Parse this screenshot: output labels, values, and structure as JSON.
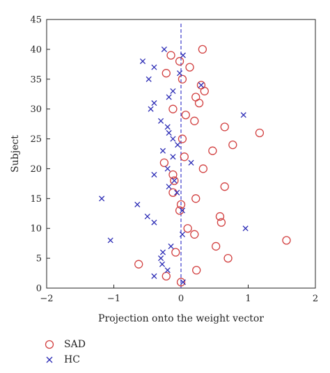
{
  "chart_data": {
    "type": "scatter",
    "xlabel": "Projection onto the weight vector",
    "ylabel": "Subject",
    "xlim": [
      -2,
      2
    ],
    "ylim": [
      0,
      45
    ],
    "xticks": [
      -2,
      -1,
      0,
      1,
      2
    ],
    "yticks": [
      0,
      5,
      10,
      15,
      20,
      25,
      30,
      35,
      40,
      45
    ],
    "grid": false,
    "legend_position": "below-left",
    "reference_line": {
      "x": 0,
      "style": "dashed",
      "color": "#3b3bcc"
    },
    "series": [
      {
        "name": "SAD",
        "marker": "circle",
        "color": "#d24040",
        "points": [
          [
            0.0,
            1
          ],
          [
            -0.22,
            2
          ],
          [
            0.23,
            3
          ],
          [
            -0.63,
            4
          ],
          [
            0.7,
            5
          ],
          [
            -0.08,
            6
          ],
          [
            0.52,
            7
          ],
          [
            1.57,
            8
          ],
          [
            0.2,
            9
          ],
          [
            0.1,
            10
          ],
          [
            0.6,
            11
          ],
          [
            0.58,
            12
          ],
          [
            -0.02,
            13
          ],
          [
            0.0,
            14
          ],
          [
            0.22,
            15
          ],
          [
            -0.12,
            16
          ],
          [
            0.65,
            17
          ],
          [
            -0.1,
            18
          ],
          [
            -0.12,
            19
          ],
          [
            0.33,
            20
          ],
          [
            -0.25,
            21
          ],
          [
            0.05,
            22
          ],
          [
            0.47,
            23
          ],
          [
            0.77,
            24
          ],
          [
            0.02,
            25
          ],
          [
            1.17,
            26
          ],
          [
            0.65,
            27
          ],
          [
            0.2,
            28
          ],
          [
            0.07,
            29
          ],
          [
            -0.12,
            30
          ],
          [
            0.27,
            31
          ],
          [
            0.22,
            32
          ],
          [
            0.35,
            33
          ],
          [
            0.3,
            34
          ],
          [
            0.02,
            35
          ],
          [
            -0.22,
            36
          ],
          [
            0.13,
            37
          ],
          [
            -0.02,
            38
          ],
          [
            -0.15,
            39
          ],
          [
            0.32,
            40
          ]
        ]
      },
      {
        "name": "HC",
        "marker": "x",
        "color": "#2b2bb5",
        "points": [
          [
            0.03,
            1
          ],
          [
            -0.4,
            2
          ],
          [
            -0.2,
            3
          ],
          [
            -0.28,
            4
          ],
          [
            -0.3,
            5
          ],
          [
            -0.27,
            6
          ],
          [
            -0.15,
            7
          ],
          [
            -1.05,
            8
          ],
          [
            0.02,
            9
          ],
          [
            0.96,
            10
          ],
          [
            -0.4,
            11
          ],
          [
            -0.5,
            12
          ],
          [
            0.02,
            13
          ],
          [
            -0.65,
            14
          ],
          [
            -1.18,
            15
          ],
          [
            -0.06,
            16
          ],
          [
            -0.18,
            17
          ],
          [
            -0.1,
            18
          ],
          [
            -0.4,
            19
          ],
          [
            -0.2,
            20
          ],
          [
            0.15,
            21
          ],
          [
            -0.12,
            22
          ],
          [
            -0.27,
            23
          ],
          [
            -0.05,
            24
          ],
          [
            -0.12,
            25
          ],
          [
            -0.18,
            26
          ],
          [
            -0.2,
            27
          ],
          [
            -0.3,
            28
          ],
          [
            0.93,
            29
          ],
          [
            -0.45,
            30
          ],
          [
            -0.4,
            31
          ],
          [
            -0.18,
            32
          ],
          [
            -0.12,
            33
          ],
          [
            0.3,
            34
          ],
          [
            -0.48,
            35
          ],
          [
            -0.02,
            36
          ],
          [
            -0.4,
            37
          ],
          [
            -0.57,
            38
          ],
          [
            0.03,
            39
          ],
          [
            -0.25,
            40
          ]
        ]
      }
    ]
  },
  "legend": {
    "items": [
      {
        "label": "SAD",
        "marker": "circle",
        "color": "#d24040"
      },
      {
        "label": "HC",
        "marker": "x",
        "color": "#2b2bb5"
      }
    ]
  }
}
